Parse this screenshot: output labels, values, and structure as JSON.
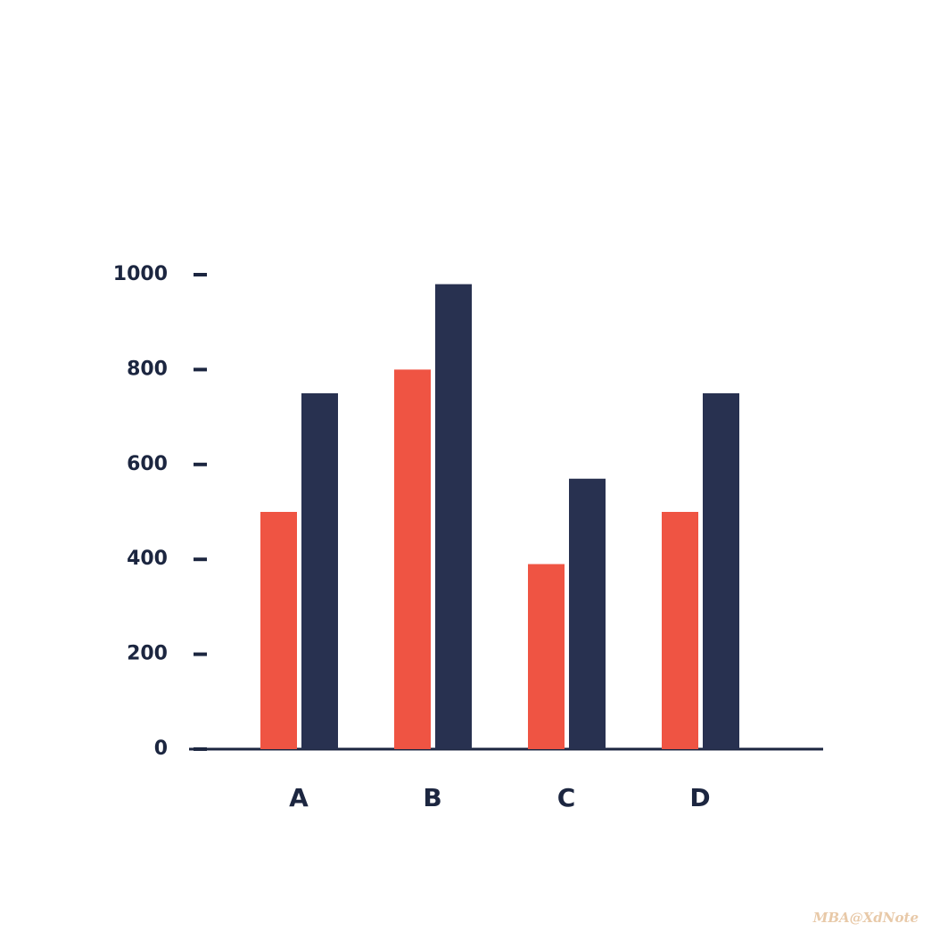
{
  "chart_data": {
    "type": "bar",
    "categories": [
      "A",
      "B",
      "C",
      "D"
    ],
    "series": [
      {
        "color": "#ef5443",
        "values": [
          500,
          800,
          390,
          500
        ]
      },
      {
        "color": "#283150",
        "values": [
          750,
          980,
          570,
          750
        ]
      }
    ],
    "ylim": [
      0,
      1000
    ],
    "yticks": [
      0,
      200,
      400,
      600,
      800,
      1000
    ],
    "watermark": "MBA@XdNote"
  }
}
